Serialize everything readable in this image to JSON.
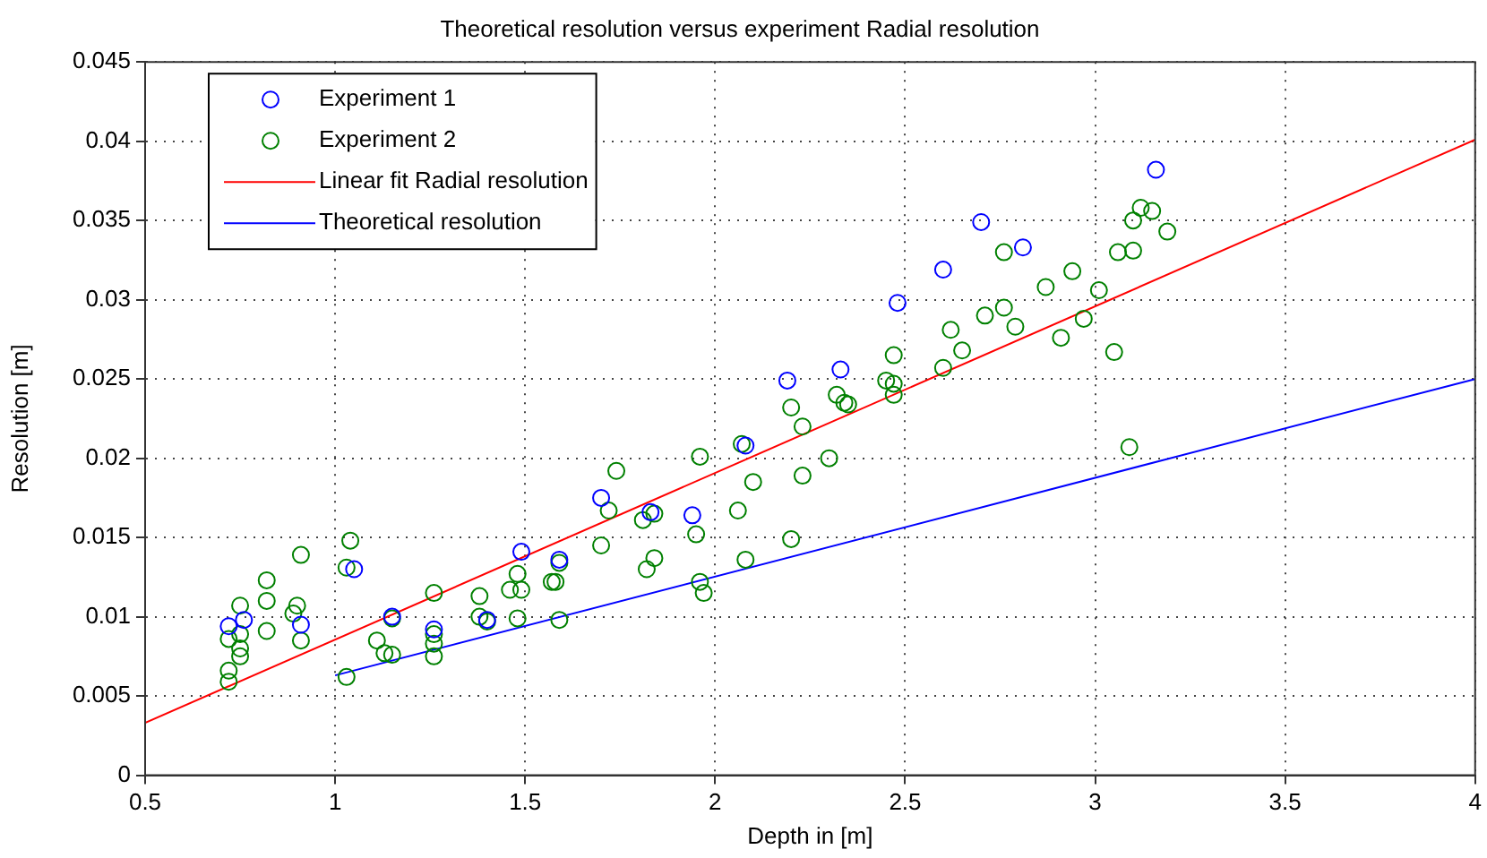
{
  "chart_data": {
    "type": "scatter",
    "title": "Theoretical resolution versus experiment Radial resolution",
    "xlabel": "Depth in [m]",
    "ylabel": "Resolution [m]",
    "xlim": [
      0.5,
      4
    ],
    "xticks": [
      0.5,
      1,
      1.5,
      2,
      2.5,
      3,
      3.5,
      4
    ],
    "ylim": [
      0,
      0.045
    ],
    "yticks": [
      0,
      0.005,
      0.01,
      0.015,
      0.02,
      0.025,
      0.03,
      0.035,
      0.04,
      0.045
    ],
    "grid": true,
    "legend": "top left",
    "series": [
      {
        "name": "Experiment 1",
        "marker": "circle",
        "color": "#0000ff",
        "x": [
          0.72,
          0.76,
          0.91,
          1.05,
          1.15,
          1.26,
          1.4,
          1.49,
          1.59,
          1.7,
          1.83,
          1.94,
          2.08,
          2.19,
          2.33,
          2.48,
          2.6,
          2.7,
          2.81,
          3.16
        ],
        "values": [
          0.0094,
          0.0098,
          0.0095,
          0.013,
          0.01,
          0.0092,
          0.0098,
          0.0141,
          0.0136,
          0.0175,
          0.0166,
          0.0164,
          0.0208,
          0.0249,
          0.0256,
          0.0298,
          0.0319,
          0.0349,
          0.0333,
          0.0382
        ]
      },
      {
        "name": "Experiment 2",
        "marker": "circle",
        "color": "#008000",
        "x": [
          0.72,
          0.72,
          0.72,
          0.75,
          0.75,
          0.75,
          0.75,
          0.82,
          0.82,
          0.82,
          0.89,
          0.9,
          0.91,
          0.91,
          1.03,
          1.04,
          1.03,
          1.11,
          1.13,
          1.15,
          1.15,
          1.26,
          1.26,
          1.26,
          1.26,
          1.38,
          1.38,
          1.4,
          1.48,
          1.46,
          1.49,
          1.48,
          1.57,
          1.58,
          1.59,
          1.59,
          1.74,
          1.72,
          1.7,
          1.81,
          1.84,
          1.82,
          1.84,
          1.95,
          1.96,
          1.96,
          1.97,
          2.06,
          2.1,
          2.07,
          2.08,
          2.2,
          2.23,
          2.2,
          2.23,
          2.3,
          2.32,
          2.34,
          2.35,
          2.45,
          2.47,
          2.47,
          2.47,
          2.6,
          2.62,
          2.65,
          2.71,
          2.76,
          2.79,
          2.76,
          2.87,
          2.91,
          2.94,
          2.97,
          3.01,
          3.05,
          3.09,
          3.06,
          3.1,
          3.1,
          3.12,
          3.15,
          3.19
        ],
        "values": [
          0.0066,
          0.0059,
          0.0086,
          0.0107,
          0.0089,
          0.008,
          0.0075,
          0.0123,
          0.011,
          0.0091,
          0.0102,
          0.0107,
          0.0085,
          0.0139,
          0.0131,
          0.0148,
          0.0062,
          0.0085,
          0.0077,
          0.0076,
          0.0099,
          0.0115,
          0.0089,
          0.0083,
          0.0075,
          0.0113,
          0.01,
          0.0097,
          0.0099,
          0.0117,
          0.0117,
          0.0127,
          0.0122,
          0.0122,
          0.0134,
          0.0098,
          0.0192,
          0.0167,
          0.0145,
          0.0161,
          0.0165,
          0.013,
          0.0137,
          0.0152,
          0.0201,
          0.0122,
          0.0115,
          0.0167,
          0.0185,
          0.0209,
          0.0136,
          0.0149,
          0.0189,
          0.0232,
          0.022,
          0.02,
          0.024,
          0.0235,
          0.0234,
          0.0249,
          0.0265,
          0.0247,
          0.024,
          0.0257,
          0.0281,
          0.0268,
          0.029,
          0.0295,
          0.0283,
          0.033,
          0.0308,
          0.0276,
          0.0318,
          0.0288,
          0.0306,
          0.0267,
          0.0207,
          0.033,
          0.0331,
          0.035,
          0.0358,
          0.0356,
          0.0343
        ]
      },
      {
        "name": "Linear fit Radial resolution",
        "type": "line",
        "marker": "none",
        "color": "#ff0000",
        "x": [
          0.5,
          4
        ],
        "values": [
          0.0033,
          0.0401
        ]
      },
      {
        "name": "Theoretical resolution",
        "type": "line",
        "marker": "none",
        "color": "#0000ff",
        "x": [
          1,
          4
        ],
        "values": [
          0.0063,
          0.025
        ]
      }
    ]
  }
}
